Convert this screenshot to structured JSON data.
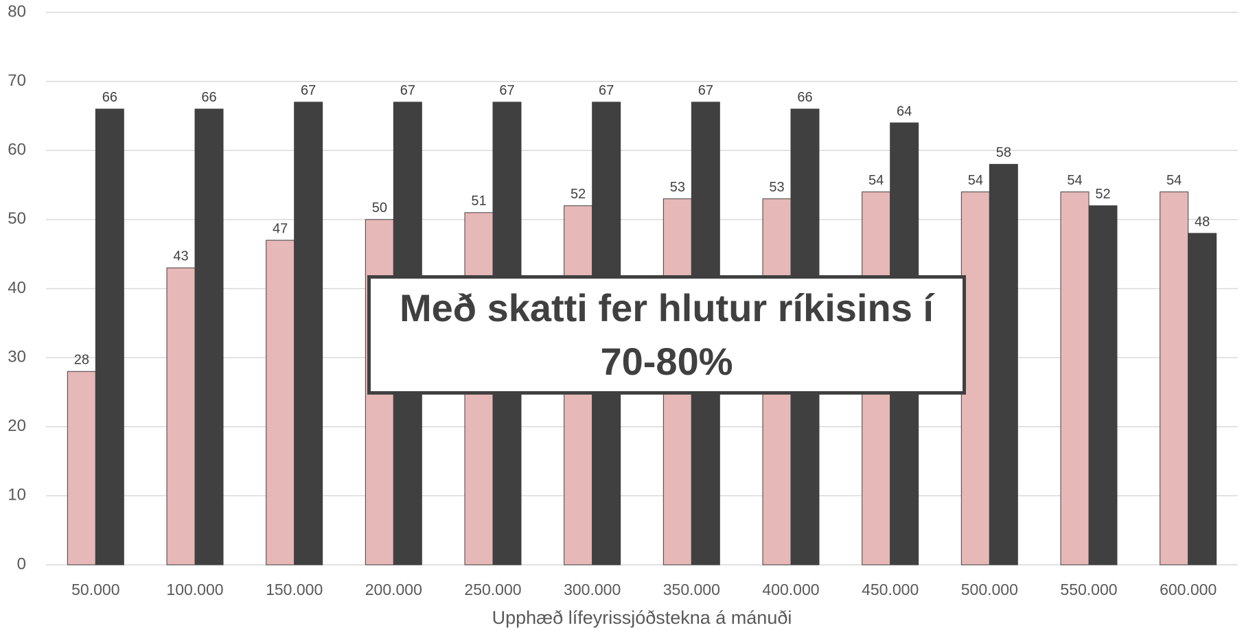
{
  "chart_data": {
    "type": "bar",
    "xlabel": "Upphæð lífeyrissjóðstekna á mánuði",
    "annotation": "Með skatti fer hlutur ríkisins í 70-80%",
    "categories": [
      "50.000",
      "100.000",
      "150.000",
      "200.000",
      "250.000",
      "300.000",
      "350.000",
      "400.000",
      "450.000",
      "500.000",
      "550.000",
      "600.000"
    ],
    "series": [
      {
        "color": "#e6b8b7",
        "values": [
          28,
          43,
          47,
          50,
          51,
          52,
          53,
          53,
          54,
          54,
          54,
          54
        ]
      },
      {
        "color": "#404040",
        "values": [
          66,
          66,
          67,
          67,
          67,
          67,
          67,
          66,
          64,
          58,
          52,
          48
        ]
      }
    ],
    "ylim": [
      0,
      80
    ],
    "yticks": [
      0,
      10,
      20,
      30,
      40,
      50,
      60,
      70,
      80
    ],
    "grid": true
  }
}
